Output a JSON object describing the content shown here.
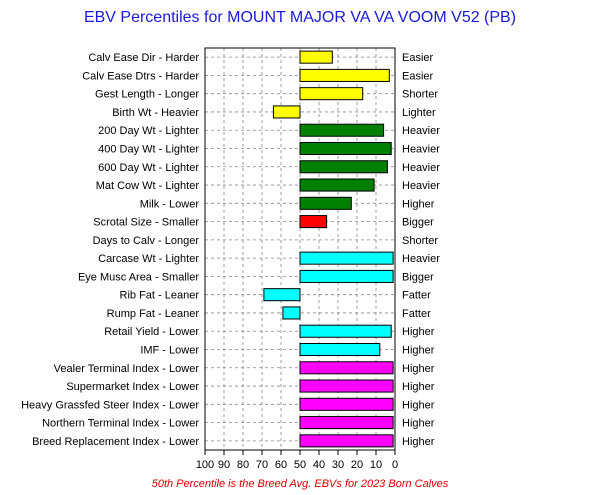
{
  "chart_data": {
    "type": "bar",
    "title": "EBV Percentiles for MOUNT MAJOR VA VA VOOM V52 (PB)",
    "footnote": "50th Percentile is the Breed Avg. EBVs for 2023 Born Calves",
    "x_ticks": [
      "100",
      "90",
      "80",
      "70",
      "60",
      "50",
      "40",
      "30",
      "20",
      "10",
      "0"
    ],
    "xlim": [
      100,
      0
    ],
    "baseline": 50,
    "grid": true,
    "colors": {
      "yellow": "#ffff00",
      "green": "#008000",
      "red": "#ff0000",
      "cyan": "#00ffff",
      "magenta": "#ff00ff"
    },
    "traits": [
      {
        "left_label": "Calv Ease Dir - Harder",
        "right_label": "Easier",
        "percentile": 33,
        "color": "yellow"
      },
      {
        "left_label": "Calv Ease Dtrs - Harder",
        "right_label": "Easier",
        "percentile": 3,
        "color": "yellow"
      },
      {
        "left_label": "Gest Length - Longer",
        "right_label": "Shorter",
        "percentile": 17,
        "color": "yellow"
      },
      {
        "left_label": "Birth Wt - Heavier",
        "right_label": "Lighter",
        "percentile": 64,
        "color": "yellow"
      },
      {
        "left_label": "200 Day Wt - Lighter",
        "right_label": "Heavier",
        "percentile": 6,
        "color": "green"
      },
      {
        "left_label": "400 Day Wt - Lighter",
        "right_label": "Heavier",
        "percentile": 2,
        "color": "green"
      },
      {
        "left_label": "600 Day Wt - Lighter",
        "right_label": "Heavier",
        "percentile": 4,
        "color": "green"
      },
      {
        "left_label": "Mat Cow Wt - Lighter",
        "right_label": "Heavier",
        "percentile": 11,
        "color": "green"
      },
      {
        "left_label": "Milk - Lower",
        "right_label": "Higher",
        "percentile": 23,
        "color": "green"
      },
      {
        "left_label": "Scrotal Size - Smaller",
        "right_label": "Bigger",
        "percentile": 36,
        "color": "red"
      },
      {
        "left_label": "Days to Calv - Longer",
        "right_label": "Shorter",
        "percentile": null,
        "color": "none"
      },
      {
        "left_label": "Carcase Wt - Lighter",
        "right_label": "Heavier",
        "percentile": 1,
        "color": "cyan"
      },
      {
        "left_label": "Eye Musc Area - Smaller",
        "right_label": "Bigger",
        "percentile": 1,
        "color": "cyan"
      },
      {
        "left_label": "Rib Fat - Leaner",
        "right_label": "Fatter",
        "percentile": 69,
        "color": "cyan"
      },
      {
        "left_label": "Rump Fat - Leaner",
        "right_label": "Fatter",
        "percentile": 59,
        "color": "cyan"
      },
      {
        "left_label": "Retail Yield - Lower",
        "right_label": "Higher",
        "percentile": 2,
        "color": "cyan"
      },
      {
        "left_label": "IMF - Lower",
        "right_label": "Higher",
        "percentile": 8,
        "color": "cyan"
      },
      {
        "left_label": "Vealer Terminal Index - Lower",
        "right_label": "Higher",
        "percentile": 1,
        "color": "magenta"
      },
      {
        "left_label": "Supermarket Index - Lower",
        "right_label": "Higher",
        "percentile": 1,
        "color": "magenta"
      },
      {
        "left_label": "Heavy Grassfed Steer Index - Lower",
        "right_label": "Higher",
        "percentile": 1,
        "color": "magenta"
      },
      {
        "left_label": "Northern Terminal Index - Lower",
        "right_label": "Higher",
        "percentile": 1,
        "color": "magenta"
      },
      {
        "left_label": "Breed Replacement Index - Lower",
        "right_label": "Higher",
        "percentile": 1,
        "color": "magenta"
      }
    ]
  }
}
